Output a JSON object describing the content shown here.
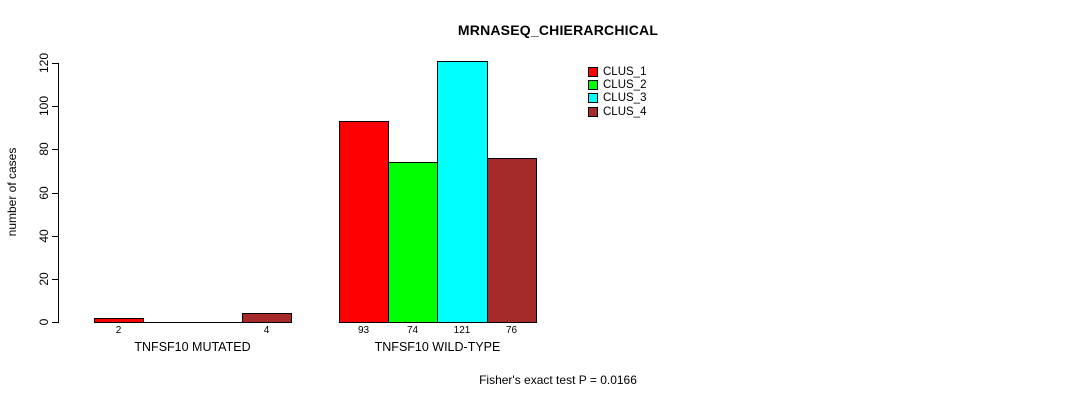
{
  "chart_data": {
    "type": "bar",
    "title": "MRNASEQ_CHIERARCHICAL",
    "ylabel": "number of cases",
    "xlabel": "",
    "footnote": "Fisher's exact test P = 0.0166",
    "ylim": [
      0,
      120
    ],
    "yticks": [
      0,
      20,
      40,
      60,
      80,
      100,
      120
    ],
    "grid": "off",
    "legend": {
      "position": "top-right",
      "entries": [
        {
          "label": "CLUS_1",
          "color": "#ff0000"
        },
        {
          "label": "CLUS_2",
          "color": "#00ff00"
        },
        {
          "label": "CLUS_3",
          "color": "#00ffff"
        },
        {
          "label": "CLUS_4",
          "color": "#a52a2a"
        }
      ]
    },
    "categories": [
      "TNFSF10 MUTATED",
      "TNFSF10 WILD-TYPE"
    ],
    "groups": [
      {
        "label": "TNFSF10 MUTATED",
        "values": [
          2,
          0,
          0,
          4
        ],
        "value_labels": [
          "2",
          "",
          "",
          "4"
        ]
      },
      {
        "label": "TNFSF10 WILD-TYPE",
        "values": [
          93,
          74,
          121,
          76
        ],
        "value_labels": [
          "93",
          "74",
          "121",
          "76"
        ]
      }
    ]
  }
}
